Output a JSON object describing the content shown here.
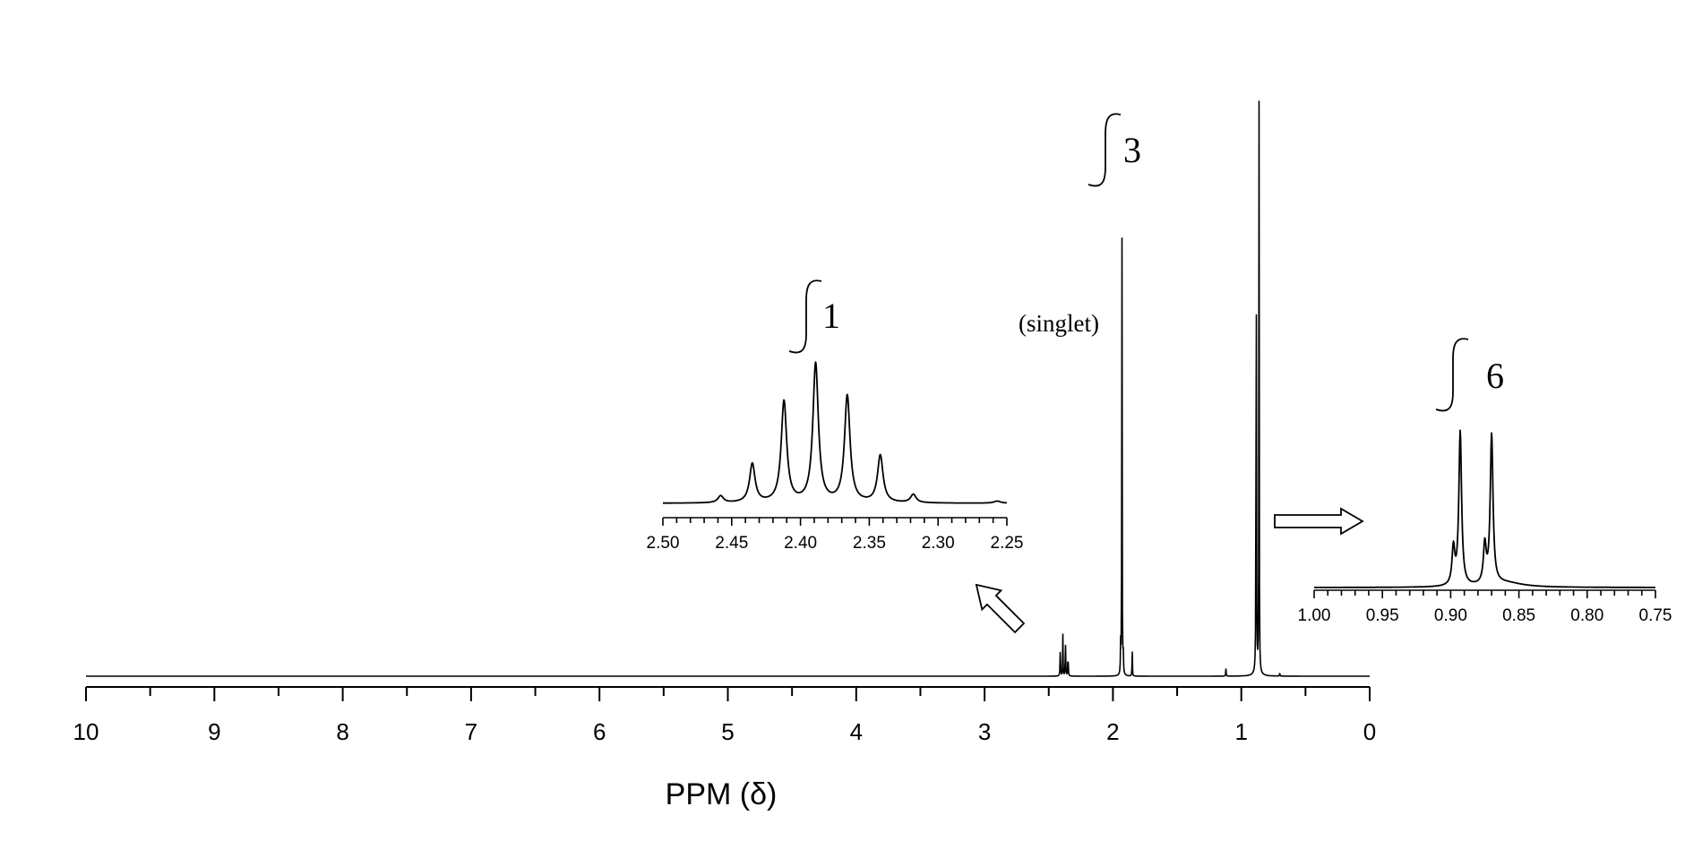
{
  "chart_data": [
    {
      "type": "line",
      "role": "main-spectrum",
      "xlabel": "PPM (δ)",
      "xlim": [
        10,
        0
      ],
      "x_reversed": true,
      "x_ticks": [
        "10",
        "9",
        "8",
        "7",
        "6",
        "5",
        "4",
        "3",
        "2",
        "1",
        "0"
      ],
      "peaks": [
        {
          "ppm": 0.884,
          "height": 1.0
        },
        {
          "ppm": 0.862,
          "height": 0.97
        },
        {
          "ppm": 1.93,
          "height": 0.81
        },
        {
          "ppm": 2.39,
          "height": 0.07
        },
        {
          "ppm": 1.85,
          "height": 0.05
        }
      ],
      "annotations": [
        {
          "text": "(singlet)"
        },
        {
          "integral": "3"
        }
      ]
    },
    {
      "type": "line",
      "role": "inset-multiplet",
      "xlim": [
        2.5,
        2.25
      ],
      "x_reversed": true,
      "x_ticks": [
        "2.50",
        "2.45",
        "2.40",
        "2.35",
        "2.30",
        "2.25"
      ],
      "peaks": [
        {
          "ppm": 2.458,
          "height": 0.05
        },
        {
          "ppm": 2.435,
          "height": 0.28
        },
        {
          "ppm": 2.412,
          "height": 0.73
        },
        {
          "ppm": 2.389,
          "height": 1.0
        },
        {
          "ppm": 2.366,
          "height": 0.77
        },
        {
          "ppm": 2.342,
          "height": 0.34
        },
        {
          "ppm": 2.318,
          "height": 0.06
        }
      ],
      "annotations": [
        {
          "integral": "1"
        }
      ]
    },
    {
      "type": "line",
      "role": "inset-doublet",
      "xlim": [
        1.0,
        0.75
      ],
      "x_reversed": true,
      "x_ticks": [
        "1.00",
        "0.95",
        "0.90",
        "0.85",
        "0.80",
        "0.75"
      ],
      "peaks": [
        {
          "ppm": 0.893,
          "height": 1.0
        },
        {
          "ppm": 0.87,
          "height": 0.97
        },
        {
          "ppm": 0.898,
          "height": 0.24
        },
        {
          "ppm": 0.875,
          "height": 0.25
        }
      ],
      "annotations": [
        {
          "integral": "6"
        }
      ]
    }
  ],
  "labels": {
    "xlabel": "PPM (δ)",
    "singlet": "(singlet)",
    "integral_main": "3",
    "integral_inset1": "1",
    "integral_inset2": "6"
  }
}
